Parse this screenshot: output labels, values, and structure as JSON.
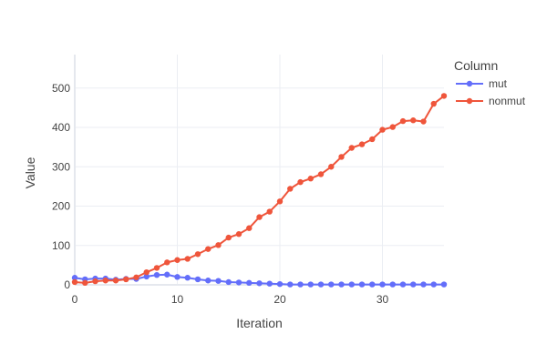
{
  "chart_data": {
    "type": "line",
    "xlabel": "Iteration",
    "ylabel": "Value",
    "xlim": [
      0,
      36
    ],
    "ylim": [
      0,
      585
    ],
    "x_ticks": [
      0,
      10,
      20,
      30
    ],
    "y_ticks": [
      0,
      100,
      200,
      300,
      400,
      500
    ],
    "grid": true,
    "legend": {
      "title": "Column",
      "placement": "top-right, outside plot"
    },
    "x": [
      0,
      1,
      2,
      3,
      4,
      5,
      6,
      7,
      8,
      9,
      10,
      11,
      12,
      13,
      14,
      15,
      16,
      17,
      18,
      19,
      20,
      21,
      22,
      23,
      24,
      25,
      26,
      27,
      28,
      29,
      30,
      31,
      32,
      33,
      34,
      35,
      36
    ],
    "series": [
      {
        "name": "mut",
        "color": "#636efa",
        "values": [
          18,
          14,
          16,
          16,
          13,
          15,
          15,
          21,
          25,
          26,
          20,
          18,
          14,
          11,
          10,
          7,
          6,
          5,
          4,
          3,
          2,
          1,
          1,
          1,
          1,
          1,
          1,
          1,
          1,
          1,
          1,
          1,
          1,
          1,
          1,
          1,
          1
        ]
      },
      {
        "name": "nonmut",
        "color": "#ef553b",
        "values": [
          7,
          5,
          9,
          11,
          11,
          14,
          19,
          32,
          43,
          57,
          63,
          66,
          78,
          91,
          101,
          120,
          129,
          144,
          172,
          186,
          212,
          244,
          261,
          270,
          281,
          300,
          325,
          348,
          357,
          370,
          394,
          401,
          416,
          418,
          415,
          460,
          480
        ]
      }
    ]
  }
}
